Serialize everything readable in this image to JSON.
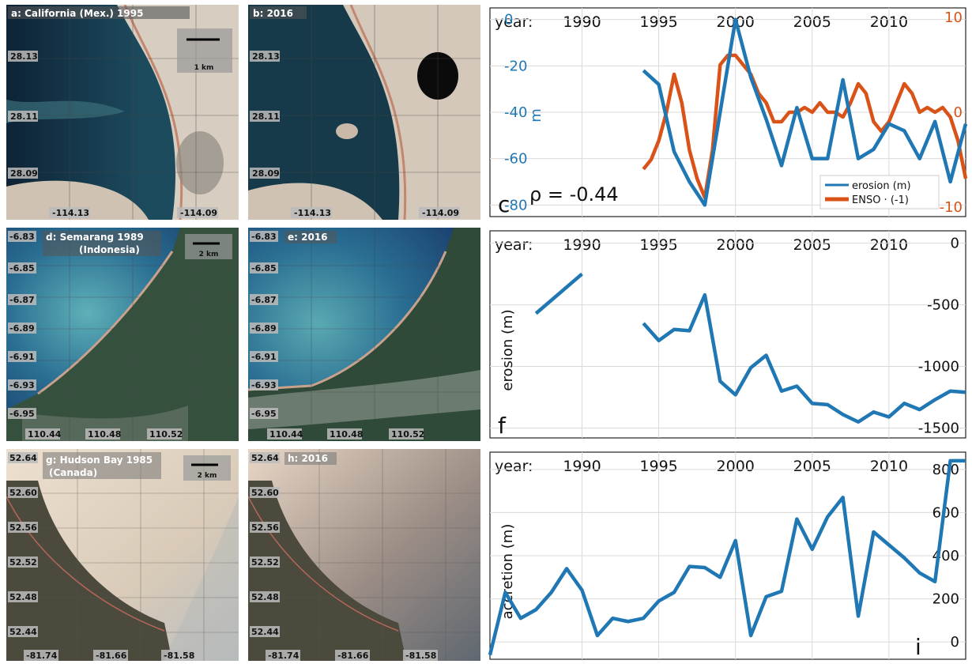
{
  "maps": {
    "a": {
      "label": "a: California (Mex.) 1995",
      "scale": "1 km",
      "lats": [
        "28.13",
        "28.11",
        "28.09"
      ],
      "lons": [
        "-114.13",
        "-114.09"
      ]
    },
    "b": {
      "label": "b: 2016",
      "lats": [
        "28.13",
        "28.11",
        "28.09"
      ],
      "lons": [
        "-114.13",
        "-114.09"
      ]
    },
    "d": {
      "label": "d: Semarang 1989",
      "label2": "(Indonesia)",
      "scale": "2 km",
      "lats": [
        "-6.83",
        "-6.85",
        "-6.87",
        "-6.89",
        "-6.91",
        "-6.93",
        "-6.95"
      ],
      "lons": [
        "110.44",
        "110.48",
        "110.52"
      ]
    },
    "e": {
      "label": "e: 2016",
      "lats": [
        "-6.83",
        "-6.85",
        "-6.87",
        "-6.89",
        "-6.91",
        "-6.93",
        "-6.95"
      ],
      "lons": [
        "110.44",
        "110.48",
        "110.52"
      ]
    },
    "g": {
      "label": "g: Hudson Bay 1985",
      "label2": "(Canada)",
      "scale": "2 km",
      "lats": [
        "52.64",
        "52.60",
        "52.56",
        "52.52",
        "52.48",
        "52.44"
      ],
      "lons": [
        "-81.74",
        "-81.66",
        "-81.58"
      ]
    },
    "h": {
      "label": "h: 2016",
      "lats": [
        "52.64",
        "52.60",
        "52.56",
        "52.52",
        "52.48",
        "52.44"
      ],
      "lons": [
        "-81.74",
        "-81.66",
        "-81.58"
      ]
    }
  },
  "colors": {
    "blue": "#1f77b4",
    "orange": "#d95319",
    "grid": "#d9d9d9"
  },
  "chart_data": [
    {
      "id": "c",
      "type": "line",
      "panel_letter": "c",
      "year_prefix": "year:",
      "x_ticks": [
        1990,
        1995,
        2000,
        2005,
        2010
      ],
      "xlim": [
        1984,
        2015
      ],
      "ylabel": "m",
      "ylim": [
        -85,
        5
      ],
      "y_ticks": [
        0,
        -20,
        -40,
        -60,
        -80
      ],
      "y2lim": [
        -11,
        11
      ],
      "y2_ticks": [
        10,
        0,
        -10
      ],
      "annotation": "ρ = -0.44",
      "legend": "bottom-right",
      "grid": true,
      "series": [
        {
          "name": "erosion (m)",
          "axis": "left",
          "color": "#1f77b4",
          "x": [
            1994,
            1995,
            1996,
            1997,
            1998,
            1999,
            2000,
            2001,
            2002,
            2003,
            2004,
            2005,
            2006,
            2007,
            2008,
            2009,
            2010,
            2011,
            2012,
            2013,
            2014,
            2015
          ],
          "y": [
            -22,
            -28,
            -57,
            -70,
            -80,
            -40,
            0,
            -25,
            -43,
            -63,
            -38,
            -60,
            -60,
            -26,
            -60,
            -56,
            -45,
            -48,
            -60,
            -44,
            -70,
            -45
          ]
        },
        {
          "name": "ENSO · (-1)",
          "axis": "right",
          "color": "#d95319",
          "x": [
            1994,
            1994.5,
            1995,
            1995.5,
            1996,
            1996.5,
            1997,
            1997.5,
            1998,
            1998.5,
            1999,
            1999.5,
            2000,
            2000.5,
            2001,
            2001.5,
            2002,
            2002.5,
            2003,
            2003.5,
            2004,
            2004.5,
            2005,
            2005.5,
            2006,
            2006.5,
            2007,
            2007.5,
            2008,
            2008.5,
            2009,
            2009.5,
            2010,
            2010.5,
            2011,
            2011.5,
            2012,
            2012.5,
            2013,
            2013.5,
            2014,
            2014.5,
            2015
          ],
          "y": [
            -6,
            -5,
            -3,
            0,
            4,
            1,
            -4,
            -7,
            -9,
            -4,
            5,
            6,
            6,
            5,
            4,
            2,
            1,
            -1,
            -1,
            0,
            0,
            0.5,
            0,
            1,
            0,
            0,
            -0.5,
            1,
            3,
            2,
            -1,
            -2,
            -1,
            1,
            3,
            2,
            0,
            0.5,
            0,
            0.5,
            -0.5,
            -3,
            -7
          ]
        }
      ]
    },
    {
      "id": "f",
      "type": "line",
      "panel_letter": "f",
      "year_prefix": "year:",
      "x_ticks": [
        1990,
        1995,
        2000,
        2005,
        2010
      ],
      "xlim": [
        1984,
        2015
      ],
      "ylabel": "erosion (m)",
      "ylim": [
        -1580,
        100
      ],
      "y_ticks": [
        0,
        -500,
        -1000,
        -1500
      ],
      "grid": true,
      "series": [
        {
          "color": "#1f77b4",
          "segments": [
            {
              "x": [
                1987,
                1990
              ],
              "y": [
                -570,
                -250
              ]
            },
            {
              "x": [
                1994,
                1995,
                1996,
                1997,
                1998,
                1999,
                2000,
                2001,
                2002,
                2003,
                2004,
                2005,
                2006,
                2007,
                2008,
                2009,
                2010,
                2011,
                2012,
                2013,
                2014,
                2015
              ],
              "y": [
                -650,
                -790,
                -700,
                -710,
                -420,
                -1120,
                -1230,
                -1010,
                -910,
                -1200,
                -1160,
                -1300,
                -1310,
                -1390,
                -1450,
                -1370,
                -1410,
                -1300,
                -1350,
                -1270,
                -1200,
                -1210
              ]
            }
          ]
        }
      ]
    },
    {
      "id": "i",
      "type": "line",
      "panel_letter": "i",
      "year_prefix": "year:",
      "x_ticks": [
        1990,
        1995,
        2000,
        2005,
        2010
      ],
      "xlim": [
        1984,
        2015
      ],
      "ylabel": "accretion (m)",
      "ylim": [
        -80,
        880
      ],
      "y_ticks": [
        800,
        600,
        400,
        200,
        0
      ],
      "grid": true,
      "series": [
        {
          "color": "#1f77b4",
          "x": [
            1984,
            1985,
            1986,
            1987,
            1988,
            1989,
            1990,
            1991,
            1992,
            1993,
            1994,
            1995,
            1996,
            1997,
            1998,
            1999,
            2000,
            2001,
            2002,
            2003,
            2004,
            2005,
            2006,
            2007,
            2008,
            2009,
            2010,
            2011,
            2012,
            2013,
            2014,
            2015
          ],
          "y": [
            -60,
            230,
            110,
            150,
            230,
            340,
            240,
            30,
            110,
            95,
            110,
            190,
            230,
            350,
            345,
            300,
            470,
            30,
            210,
            235,
            570,
            430,
            580,
            670,
            120,
            510,
            450,
            390,
            320,
            280,
            840,
            840
          ]
        }
      ]
    }
  ]
}
